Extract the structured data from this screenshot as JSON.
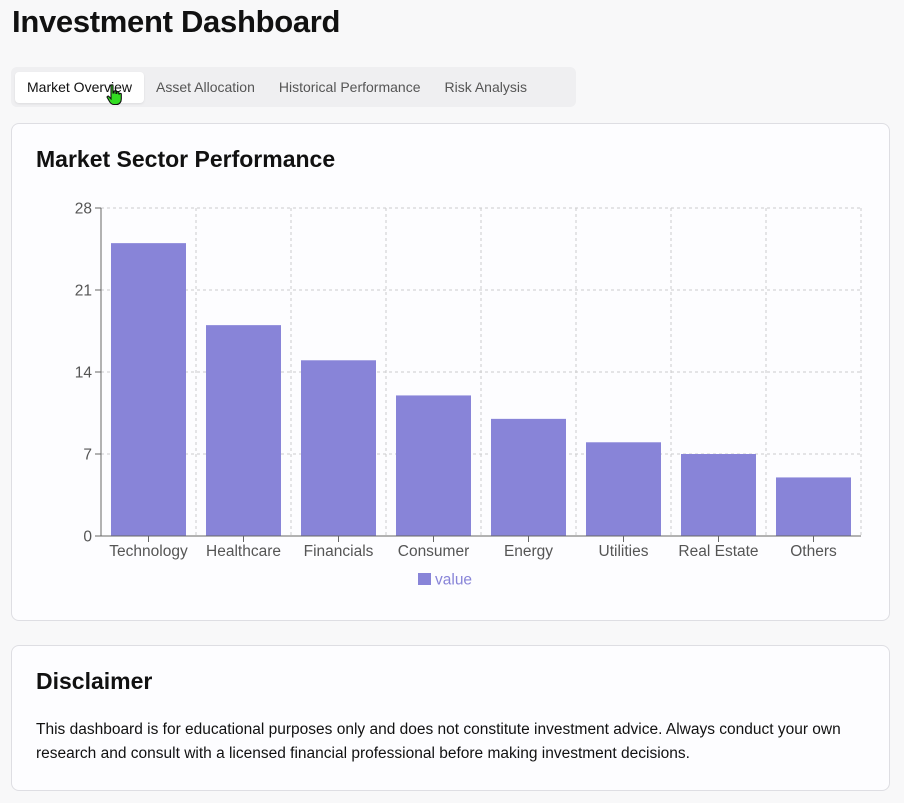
{
  "page": {
    "title": "Investment Dashboard"
  },
  "tabs": [
    {
      "label": "Market Overview",
      "active": true
    },
    {
      "label": "Asset Allocation",
      "active": false
    },
    {
      "label": "Historical Performance",
      "active": false
    },
    {
      "label": "Risk Analysis",
      "active": false
    }
  ],
  "chart_card": {
    "title": "Market Sector Performance"
  },
  "chart_data": {
    "type": "bar",
    "title": "Market Sector Performance",
    "categories": [
      "Technology",
      "Healthcare",
      "Financials",
      "Consumer",
      "Energy",
      "Utilities",
      "Real Estate",
      "Others"
    ],
    "series": [
      {
        "name": "value",
        "values": [
          25,
          18,
          15,
          12,
          10,
          8,
          7,
          5
        ],
        "color": "#8884d8"
      }
    ],
    "yticks": [
      0,
      7,
      14,
      21,
      28
    ],
    "ylim": [
      0,
      28
    ],
    "xlabel": "",
    "ylabel": "",
    "grid": true,
    "legend": "bottom-center"
  },
  "disclaimer": {
    "title": "Disclaimer",
    "text": "This dashboard is for educational purposes only and does not constitute investment advice. Always conduct your own research and consult with a licensed financial professional before making investment decisions."
  },
  "colors": {
    "bar": "#8884d8",
    "grid": "#cccccc",
    "axis": "#666666"
  },
  "icons": {
    "cursor": "hand-pointer-icon"
  }
}
